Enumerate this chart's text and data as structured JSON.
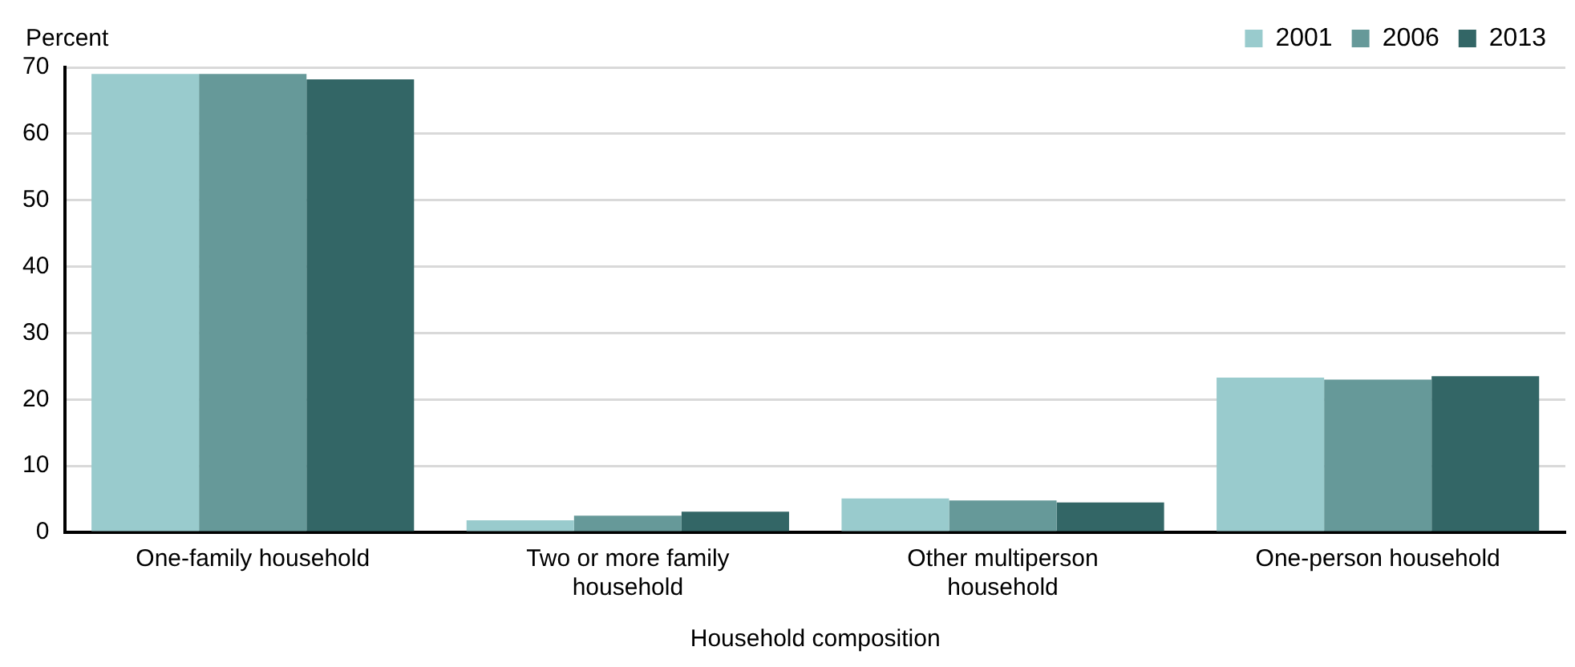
{
  "chart_data": {
    "type": "bar",
    "xlabel": "Household composition",
    "ylabel": "Percent",
    "categories": [
      "One-family household",
      "Two or more family household",
      "Other multiperson household",
      "One-person household"
    ],
    "series": [
      {
        "name": "2001",
        "color": "#99cbcd",
        "values": [
          69.0,
          1.8,
          5.1,
          23.3
        ]
      },
      {
        "name": "2006",
        "color": "#669999",
        "values": [
          69.0,
          2.5,
          4.8,
          23.0
        ]
      },
      {
        "name": "2013",
        "color": "#336666",
        "values": [
          68.2,
          3.1,
          4.5,
          23.5
        ]
      }
    ],
    "ylim": [
      0,
      70
    ],
    "yticks": [
      0,
      10,
      20,
      30,
      40,
      50,
      60,
      70
    ],
    "grid": "y",
    "legend": "top right"
  }
}
